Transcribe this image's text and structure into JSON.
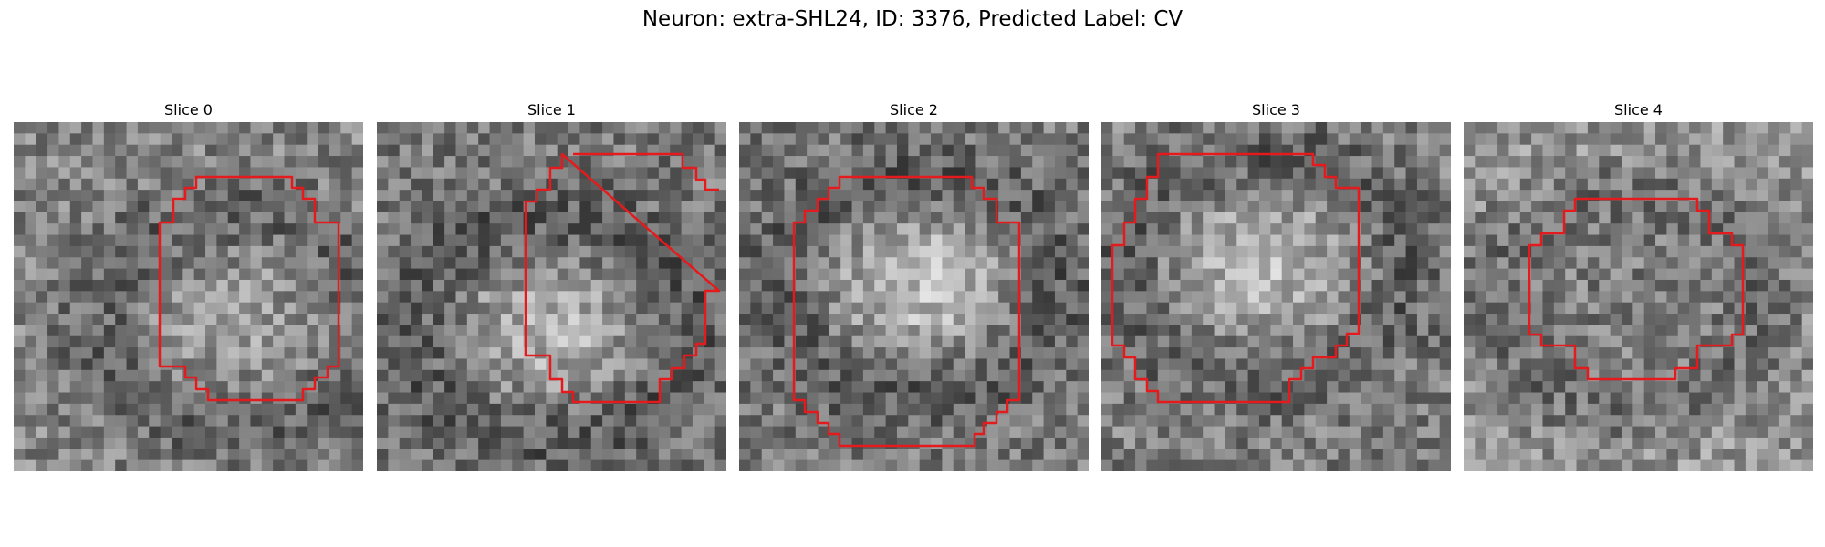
{
  "figure": {
    "title": "Neuron: extra-SHL24, ID: 3376, Predicted Label: CV"
  },
  "colors": {
    "background": "#ffffff",
    "contour": "#e41a1c",
    "colormap": "grayscale"
  },
  "panels": [
    {
      "title": "Slice 0",
      "seed": 11,
      "base": 132,
      "center": [
        0.62,
        0.55
      ],
      "blob_gain": 20,
      "contour": "octagon-a"
    },
    {
      "title": "Slice 1",
      "seed": 23,
      "base": 120,
      "center": [
        0.48,
        0.58
      ],
      "blob_gain": 55,
      "contour": "octagon-b"
    },
    {
      "title": "Slice 2",
      "seed": 37,
      "base": 120,
      "center": [
        0.5,
        0.45
      ],
      "blob_gain": 70,
      "contour": "octagon-c"
    },
    {
      "title": "Slice 3",
      "seed": 41,
      "base": 125,
      "center": [
        0.45,
        0.4
      ],
      "blob_gain": 60,
      "contour": "octagon-d"
    },
    {
      "title": "Slice 4",
      "seed": 53,
      "base": 150,
      "center": [
        0.45,
        0.5
      ],
      "blob_gain": -30,
      "contour": "octagon-e"
    }
  ]
}
